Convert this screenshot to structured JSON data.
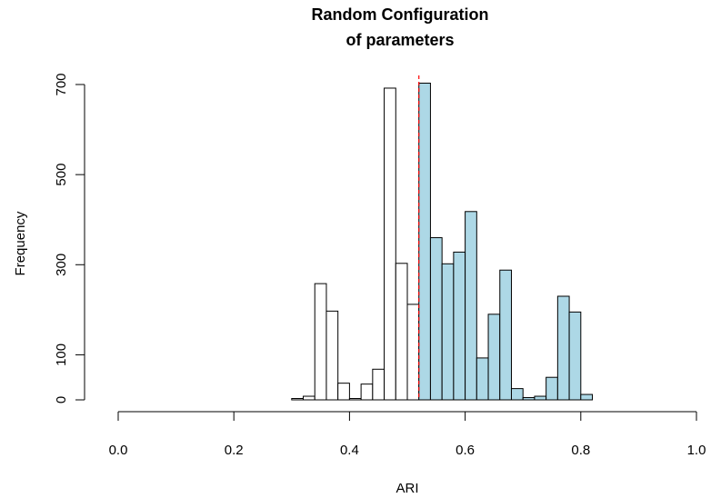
{
  "chart_data": {
    "type": "bar",
    "title_lines": [
      "Random Configuration",
      "of parameters"
    ],
    "xlabel": "ARI",
    "ylabel": "Frequency",
    "xlim": [
      0,
      1
    ],
    "ylim": [
      0,
      700
    ],
    "x_ticks": [
      0.0,
      0.2,
      0.4,
      0.6,
      0.8,
      1.0
    ],
    "x_tick_labels": [
      "0.0",
      "0.2",
      "0.4",
      "0.6",
      "0.8",
      "1.0"
    ],
    "y_ticks": [
      0,
      100,
      300,
      500,
      700
    ],
    "y_tick_labels": [
      "0",
      "100",
      "300",
      "500",
      "700"
    ],
    "grid": false,
    "bin_width": 0.02,
    "bins": [
      {
        "start": 0.3,
        "value": 3,
        "highlight": false
      },
      {
        "start": 0.32,
        "value": 8,
        "highlight": false
      },
      {
        "start": 0.34,
        "value": 258,
        "highlight": false
      },
      {
        "start": 0.36,
        "value": 197,
        "highlight": false
      },
      {
        "start": 0.38,
        "value": 37,
        "highlight": false
      },
      {
        "start": 0.4,
        "value": 3,
        "highlight": false
      },
      {
        "start": 0.42,
        "value": 35,
        "highlight": false
      },
      {
        "start": 0.44,
        "value": 68,
        "highlight": false
      },
      {
        "start": 0.46,
        "value": 692,
        "highlight": false
      },
      {
        "start": 0.48,
        "value": 303,
        "highlight": false
      },
      {
        "start": 0.5,
        "value": 212,
        "highlight": false
      },
      {
        "start": 0.52,
        "value": 703,
        "highlight": true
      },
      {
        "start": 0.54,
        "value": 360,
        "highlight": true
      },
      {
        "start": 0.56,
        "value": 302,
        "highlight": true
      },
      {
        "start": 0.58,
        "value": 328,
        "highlight": true
      },
      {
        "start": 0.6,
        "value": 418,
        "highlight": true
      },
      {
        "start": 0.62,
        "value": 93,
        "highlight": true
      },
      {
        "start": 0.64,
        "value": 190,
        "highlight": true
      },
      {
        "start": 0.66,
        "value": 288,
        "highlight": true
      },
      {
        "start": 0.68,
        "value": 25,
        "highlight": true
      },
      {
        "start": 0.7,
        "value": 5,
        "highlight": true
      },
      {
        "start": 0.72,
        "value": 8,
        "highlight": true
      },
      {
        "start": 0.74,
        "value": 50,
        "highlight": true
      },
      {
        "start": 0.76,
        "value": 230,
        "highlight": true
      },
      {
        "start": 0.78,
        "value": 195,
        "highlight": true
      },
      {
        "start": 0.8,
        "value": 12,
        "highlight": true
      }
    ],
    "threshold": 0.52,
    "colors": {
      "highlight_fill": "#add8e6",
      "normal_fill": "#ffffff",
      "bar_stroke": "#000000",
      "threshold_line": "#ff0000"
    }
  }
}
